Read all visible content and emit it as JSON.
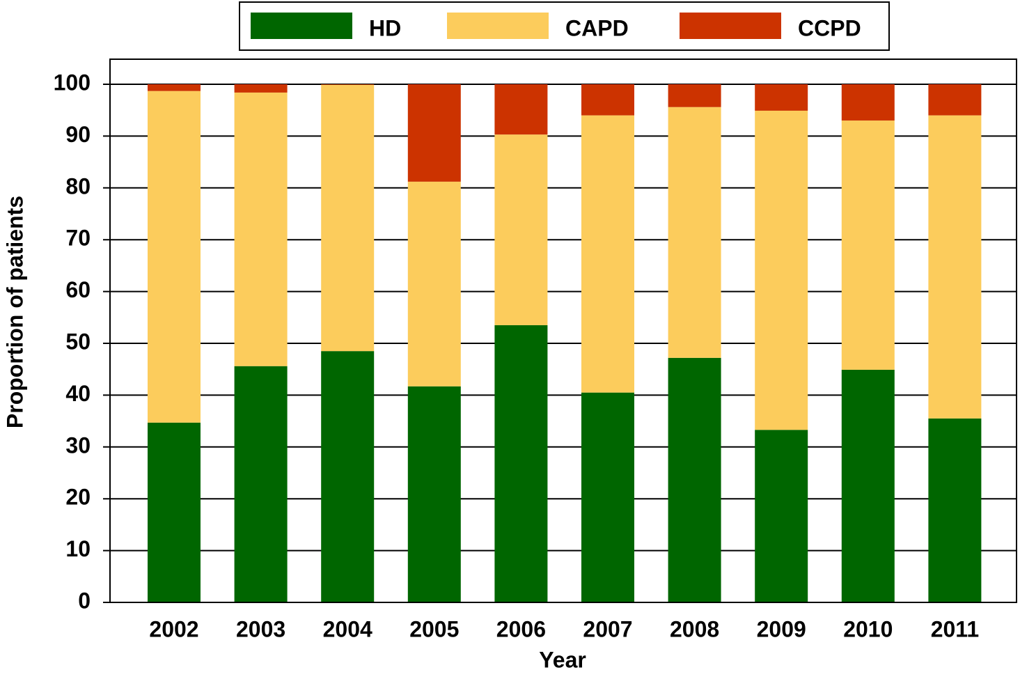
{
  "chart_data": {
    "type": "stacked_bar",
    "x_label": "Year",
    "y_label": "Proportion of patients",
    "categories": [
      "2002",
      "2003",
      "2004",
      "2005",
      "2006",
      "2007",
      "2008",
      "2009",
      "2010",
      "2011"
    ],
    "series": [
      {
        "name": "HD",
        "color": "#006600",
        "values": [
          34.7,
          45.6,
          48.5,
          41.7,
          53.5,
          40.5,
          47.2,
          33.3,
          44.9,
          35.5
        ]
      },
      {
        "name": "CAPD",
        "color": "#fccc5c",
        "values": [
          64.0,
          52.8,
          51.4,
          39.5,
          36.8,
          53.5,
          48.4,
          61.6,
          48.1,
          58.5
        ]
      },
      {
        "name": "CCPD",
        "color": "#cc3300",
        "values": [
          1.3,
          1.6,
          0.1,
          18.8,
          9.7,
          6.0,
          4.4,
          5.1,
          7.0,
          6.0
        ]
      }
    ],
    "ylim": [
      0,
      100
    ],
    "yticks": [
      0,
      10,
      20,
      30,
      40,
      50,
      60,
      70,
      80,
      90,
      100
    ],
    "grid": true
  }
}
